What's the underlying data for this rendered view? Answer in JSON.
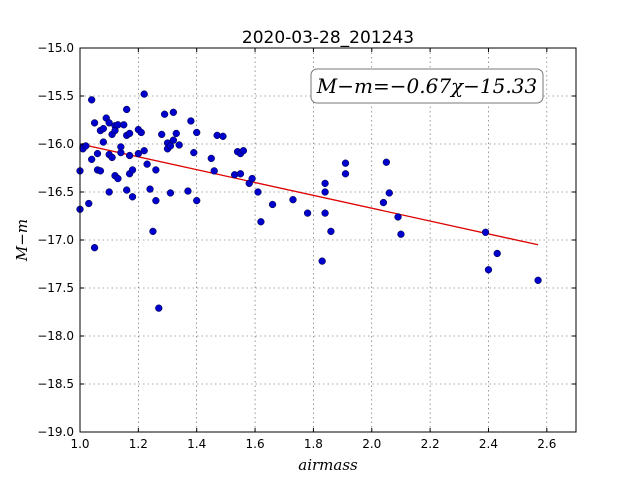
{
  "chart_data": {
    "type": "scatter",
    "title": "2020-03-28_201243",
    "xlabel": "airmass",
    "ylabel": "M−m",
    "xlim": [
      1.0,
      2.7
    ],
    "ylim": [
      -19.0,
      -15.0
    ],
    "xticks": [
      1.0,
      1.2,
      1.4,
      1.6,
      1.8,
      2.0,
      2.2,
      2.4,
      2.6
    ],
    "yticks": [
      -15.0,
      -15.5,
      -16.0,
      -16.5,
      -17.0,
      -17.5,
      -18.0,
      -18.5,
      -19.0
    ],
    "xtick_labels": [
      "1.0",
      "1.2",
      "1.4",
      "1.6",
      "1.8",
      "2.0",
      "2.2",
      "2.4",
      "2.6"
    ],
    "ytick_labels": [
      "−15.0",
      "−15.5",
      "−16.0",
      "−16.5",
      "−17.0",
      "−17.5",
      "−18.0",
      "−18.5",
      "−19.0"
    ],
    "grid": true,
    "annotation": "M−m=−0.67χ−15.33",
    "point_color": "#0000cc",
    "fit_color": "#dd0000",
    "fit_line": {
      "x": [
        1.0,
        2.57
      ],
      "y": [
        -16.0,
        -17.05
      ]
    },
    "points": {
      "x": [
        1.0,
        1.0,
        1.01,
        1.01,
        1.02,
        1.03,
        1.04,
        1.04,
        1.05,
        1.05,
        1.06,
        1.06,
        1.07,
        1.07,
        1.08,
        1.08,
        1.09,
        1.1,
        1.1,
        1.1,
        1.11,
        1.11,
        1.12,
        1.12,
        1.12,
        1.13,
        1.13,
        1.14,
        1.14,
        1.15,
        1.16,
        1.16,
        1.16,
        1.17,
        1.17,
        1.17,
        1.18,
        1.18,
        1.2,
        1.2,
        1.21,
        1.22,
        1.22,
        1.23,
        1.24,
        1.25,
        1.26,
        1.26,
        1.27,
        1.28,
        1.29,
        1.3,
        1.3,
        1.31,
        1.31,
        1.32,
        1.32,
        1.33,
        1.34,
        1.37,
        1.38,
        1.39,
        1.4,
        1.4,
        1.45,
        1.46,
        1.47,
        1.49,
        1.53,
        1.54,
        1.55,
        1.55,
        1.56,
        1.58,
        1.59,
        1.61,
        1.62,
        1.66,
        1.73,
        1.78,
        1.83,
        1.84,
        1.84,
        1.84,
        1.86,
        1.91,
        1.91,
        2.04,
        2.05,
        2.06,
        2.09,
        2.1,
        2.39,
        2.4,
        2.43,
        2.57
      ],
      "y": [
        -16.28,
        -16.68,
        -16.03,
        -16.05,
        -16.02,
        -16.62,
        -16.16,
        -15.54,
        -15.78,
        -17.08,
        -16.1,
        -16.27,
        -15.86,
        -16.28,
        -15.84,
        -15.98,
        -15.73,
        -16.11,
        -15.78,
        -16.5,
        -15.9,
        -16.14,
        -15.81,
        -16.33,
        -15.86,
        -16.36,
        -15.8,
        -16.09,
        -16.03,
        -15.8,
        -15.64,
        -15.91,
        -16.48,
        -15.89,
        -16.31,
        -16.12,
        -16.55,
        -16.27,
        -15.85,
        -16.1,
        -15.88,
        -15.48,
        -16.07,
        -16.21,
        -16.47,
        -16.91,
        -16.27,
        -16.59,
        -17.71,
        -15.9,
        -15.69,
        -15.99,
        -16.05,
        -16.02,
        -16.51,
        -15.67,
        -15.96,
        -15.89,
        -16.01,
        -16.49,
        -15.76,
        -16.09,
        -16.59,
        -15.88,
        -16.15,
        -16.28,
        -15.91,
        -15.92,
        -16.32,
        -16.08,
        -16.31,
        -16.1,
        -16.07,
        -16.41,
        -16.36,
        -16.5,
        -16.81,
        -16.63,
        -16.58,
        -16.72,
        -17.22,
        -16.72,
        -16.5,
        -16.41,
        -16.91,
        -16.31,
        -16.2,
        -16.61,
        -16.19,
        -16.51,
        -16.76,
        -16.94,
        -16.92,
        -17.31,
        -17.14,
        -17.42
      ]
    }
  }
}
